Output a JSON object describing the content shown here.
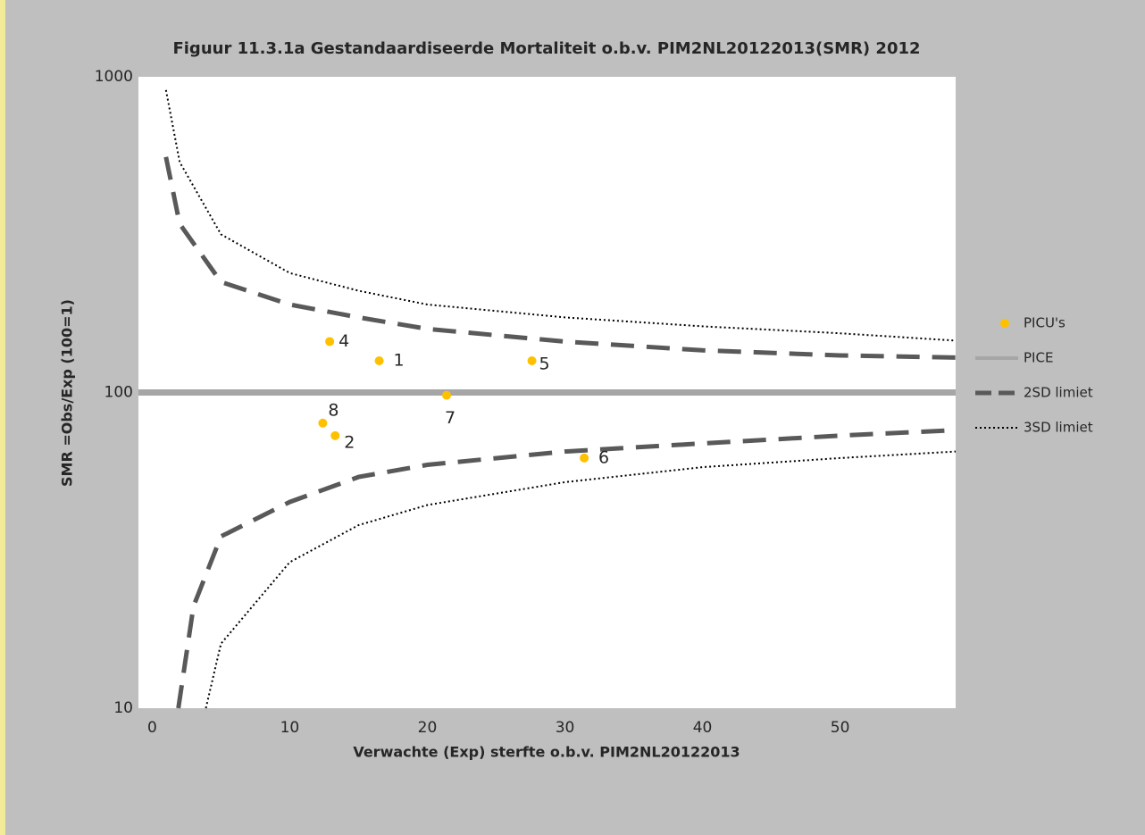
{
  "chart_data": {
    "type": "scatter",
    "title": "Figuur 11.3.1a Gestandaardiseerde Mortaliteit o.b.v. PIM2NL20122013(SMR) 2012",
    "x_label": "Verwachte (Exp) sterfte o.b.v. PIM2NL20122013",
    "y_label": "SMR =Obs/Exp (100=1)",
    "xlim": [
      -1,
      58.4
    ],
    "xticks": [
      0,
      10,
      20,
      30,
      40,
      50
    ],
    "ylim": [
      10,
      1000
    ],
    "yticks": [
      10,
      100,
      1000
    ],
    "y_scale": "log",
    "grid": false,
    "legend": "right",
    "series": [
      {
        "name": "PICU's",
        "color": "#ffc000",
        "style": "markers",
        "x": [
          16.5,
          13.3,
          12.9,
          27.6,
          31.4,
          21.4,
          12.4
        ],
        "values": [
          126,
          73,
          145,
          126,
          62,
          98,
          80
        ],
        "labels": [
          "1",
          "2",
          "4",
          "5",
          "6",
          "7",
          "8"
        ]
      },
      {
        "name": "PICE",
        "color": "#a6a6a6",
        "style": "solid",
        "x": [
          -1,
          58.4
        ],
        "values": [
          100,
          100
        ]
      },
      {
        "name": "2SD limiet",
        "color": "#595959",
        "style": "dashed",
        "x": [
          1,
          2,
          5,
          10,
          15,
          20,
          30,
          40,
          50,
          58.4
        ],
        "values": [
          557,
          342,
          224,
          190,
          173,
          159,
          145,
          136,
          131,
          129
        ]
      },
      {
        "name": "2SD limiet",
        "color": "#595959",
        "style": "dashed",
        "legend": false,
        "x": [
          1.9,
          3,
          5,
          10,
          15,
          20,
          30,
          40,
          50,
          58.4
        ],
        "values": [
          10,
          21,
          35,
          45,
          54,
          59,
          65,
          69,
          73,
          76
        ]
      },
      {
        "name": "3SD limiet",
        "color": "#000000",
        "style": "dotted",
        "x": [
          1,
          2,
          5,
          10,
          15,
          20,
          30,
          40,
          50,
          58.4
        ],
        "values": [
          908,
          537,
          317,
          239,
          210,
          190,
          173,
          162,
          154,
          146
        ]
      },
      {
        "name": "3SD limiet",
        "color": "#000000",
        "style": "dotted",
        "legend": false,
        "x": [
          3.9,
          5,
          10,
          15,
          20,
          30,
          40,
          50,
          58.4
        ],
        "values": [
          10,
          16,
          29,
          38,
          44,
          52,
          58,
          62,
          65
        ]
      }
    ]
  }
}
